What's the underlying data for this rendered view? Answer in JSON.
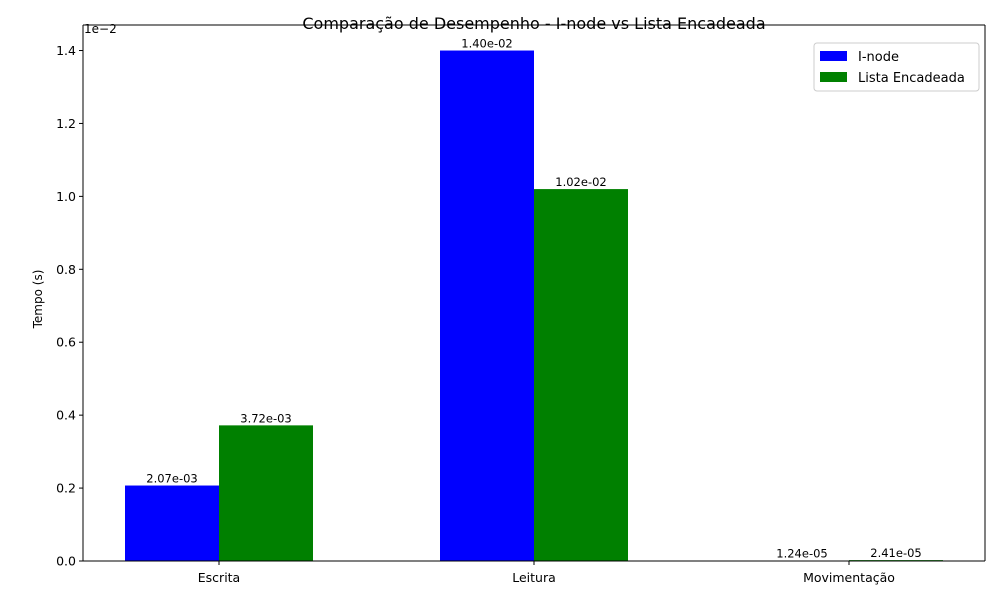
{
  "chart_data": {
    "type": "bar",
    "title": "Comparação de Desempenho - I-node vs Lista Encadeada",
    "xlabel": "",
    "ylabel": "Tempo (s)",
    "y_offset_label": "1e−2",
    "categories": [
      "Escrita",
      "Leitura",
      "Movimentação"
    ],
    "series": [
      {
        "name": "I-node",
        "color": "#0000ff",
        "values": [
          0.00207,
          0.014,
          1.24e-05
        ],
        "labels": [
          "2.07e-03",
          "1.40e-02",
          "1.24e-05"
        ]
      },
      {
        "name": "Lista Encadeada",
        "color": "#008000",
        "values": [
          0.00372,
          0.0102,
          2.41e-05
        ],
        "labels": [
          "3.72e-03",
          "1.02e-02",
          "2.41e-05"
        ]
      }
    ],
    "ylim": [
      0,
      0.0147
    ],
    "yticks": [
      0,
      0.002,
      0.004,
      0.006,
      0.008,
      0.01,
      0.012,
      0.014
    ],
    "ytick_labels": [
      "0.0",
      "0.2",
      "0.4",
      "0.6",
      "0.8",
      "1.0",
      "1.2",
      "1.4"
    ],
    "legend": "top-right",
    "grid": false
  }
}
